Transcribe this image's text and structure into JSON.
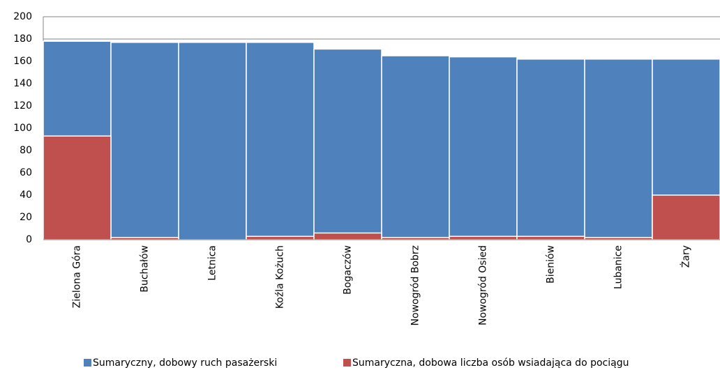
{
  "chart_data": {
    "type": "bar",
    "barmode": "overlay",
    "categories": [
      "Zielona Góra",
      "Buchałów",
      "Letnica",
      "Koźla Kożuch",
      "Bogaczów",
      "Nowogród Bobrz",
      "Nowogród Osied",
      "Bieniów",
      "Lubanice",
      "Żary"
    ],
    "series": [
      {
        "name": "Sumaryczny, dobowy ruch pasażerski",
        "color": "#4f81bd",
        "values": [
          178,
          177,
          177,
          177,
          171,
          165,
          164,
          162,
          162,
          162
        ]
      },
      {
        "name": "Sumaryczna, dobowa liczba osób wsiadająca do pociągu",
        "color": "#c0504d",
        "values": [
          93,
          2,
          0,
          3,
          6,
          2,
          3,
          3,
          2,
          40
        ]
      }
    ],
    "ylim": [
      0,
      200
    ],
    "yticks": [
      0,
      20,
      40,
      60,
      80,
      100,
      120,
      140,
      160,
      180,
      200
    ],
    "grid": true,
    "legend": "bottom"
  }
}
